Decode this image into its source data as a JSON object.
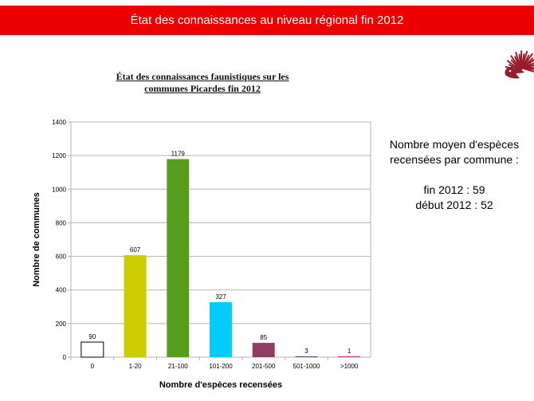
{
  "header": {
    "title": "État des connaissances au niveau régional fin 2012"
  },
  "side_note": {
    "line1": "Nombre moyen d'espèces",
    "line2": "recensées par commune :",
    "line3": "fin 2012 : 59",
    "line4": "début 2012 : 52"
  },
  "logo": {
    "icon": "hedgehog-icon",
    "color": "#9a1b2c"
  },
  "chart_data": {
    "type": "bar",
    "title_line1": "État des connaissances faunistiques sur les",
    "title_line2": "communes Picardes fin 2012",
    "xlabel": "Nombre d'espèces recensées",
    "ylabel": "Nombre de communes",
    "ylim": [
      0,
      1400
    ],
    "yticks": [
      0,
      200,
      400,
      600,
      800,
      1000,
      1200,
      1400
    ],
    "grid": true,
    "categories": [
      "0",
      "1-20",
      "21-100",
      "101-200",
      "201-500",
      "501-1000",
      ">1000"
    ],
    "values": [
      90,
      607,
      1179,
      327,
      85,
      3,
      1
    ],
    "colors": [
      "#ffffff",
      "#cccc00",
      "#579d1c",
      "#00ccff",
      "#8e3c64",
      "#5b3d8e",
      "#c32a45"
    ]
  }
}
